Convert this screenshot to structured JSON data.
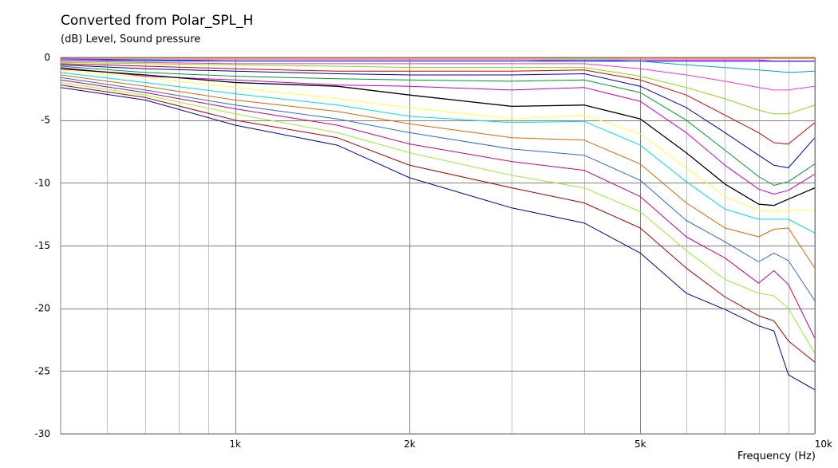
{
  "chart_data": {
    "type": "line",
    "title": "Converted from Polar_SPL_H",
    "ylabel": "(dB)  Level, Sound pressure",
    "xlabel": "Frequency  (Hz)",
    "x_scale": "log",
    "xlim": [
      500,
      10000
    ],
    "ylim": [
      -30,
      0
    ],
    "grid": true,
    "x_tick_values": [
      1000,
      2000,
      5000,
      10000
    ],
    "x_tick_labels": [
      "1k",
      "2k",
      "5k",
      "10k"
    ],
    "y_tick_values": [
      0,
      -5,
      -10,
      -15,
      -20,
      -25,
      -30
    ],
    "y_tick_labels": [
      "0",
      "-5",
      "-10",
      "-15",
      "-20",
      "-25",
      "-30"
    ],
    "x": [
      500,
      700,
      1000,
      1500,
      2000,
      3000,
      4000,
      5000,
      6000,
      7000,
      8000,
      8500,
      9000,
      10000
    ],
    "series": [
      {
        "color": "#ff9900",
        "values": [
          -0.1,
          -0.1,
          -0.1,
          -0.1,
          -0.1,
          -0.1,
          -0.1,
          -0.1,
          -0.1,
          -0.1,
          -0.1,
          -0.1,
          -0.1,
          -0.1
        ]
      },
      {
        "color": "#ff00ff",
        "values": [
          -0.1,
          -0.2,
          -0.2,
          -0.2,
          -0.2,
          -0.2,
          -0.2,
          -0.2,
          -0.2,
          -0.2,
          -0.2,
          -0.3,
          -0.3,
          -0.3
        ]
      },
      {
        "color": "#0000ff",
        "values": [
          -0.2,
          -0.2,
          -0.3,
          -0.3,
          -0.3,
          -0.3,
          -0.3,
          -0.3,
          -0.3,
          -0.3,
          -0.3,
          -0.3,
          -0.3,
          -0.3
        ]
      },
      {
        "color": "#00aaaa",
        "values": [
          -0.2,
          -0.3,
          -0.3,
          -0.3,
          -0.3,
          -0.3,
          -0.2,
          -0.3,
          -0.6,
          -0.8,
          -1.0,
          -1.1,
          -1.2,
          -1.1
        ]
      },
      {
        "color": "#ff33cc",
        "values": [
          -0.3,
          -0.4,
          -0.5,
          -0.5,
          -0.5,
          -0.5,
          -0.5,
          -0.9,
          -1.4,
          -1.9,
          -2.4,
          -2.6,
          -2.6,
          -2.3
        ]
      },
      {
        "color": "#88dd00",
        "values": [
          -0.4,
          -0.5,
          -0.6,
          -0.7,
          -0.8,
          -0.8,
          -0.8,
          -1.5,
          -2.4,
          -3.3,
          -4.2,
          -4.5,
          -4.5,
          -3.8
        ]
      },
      {
        "color": "#cc0000",
        "values": [
          -0.5,
          -0.7,
          -0.9,
          -1.1,
          -1.1,
          -1.1,
          -1.0,
          -1.8,
          -3.0,
          -4.6,
          -6.0,
          -6.8,
          -6.9,
          -5.2
        ]
      },
      {
        "color": "#0000aa",
        "values": [
          -0.6,
          -0.9,
          -1.1,
          -1.3,
          -1.4,
          -1.4,
          -1.3,
          -2.3,
          -4.0,
          -6.0,
          -7.8,
          -8.6,
          -8.8,
          -6.4
        ]
      },
      {
        "color": "#009933",
        "values": [
          -0.7,
          -1.2,
          -1.5,
          -1.7,
          -1.8,
          -1.9,
          -1.8,
          -2.8,
          -5.0,
          -7.4,
          -9.5,
          -10.2,
          -9.9,
          -8.5
        ]
      },
      {
        "color": "#cc00cc",
        "values": [
          -0.8,
          -1.5,
          -1.8,
          -2.2,
          -2.3,
          -2.6,
          -2.4,
          -3.5,
          -6.0,
          -8.6,
          -10.5,
          -10.9,
          -10.6,
          -9.3
        ]
      },
      {
        "color": "#000000",
        "values": [
          -0.9,
          -1.4,
          -2.0,
          -2.3,
          -3.0,
          -3.9,
          -3.8,
          -4.9,
          -7.6,
          -10.1,
          -11.7,
          -11.8,
          -11.3,
          -10.4
        ]
      },
      {
        "color": "#ffff44",
        "values": [
          -1.0,
          -1.6,
          -2.4,
          -3.3,
          -4.0,
          -4.9,
          -4.6,
          -6.1,
          -8.8,
          -11.1,
          -12.2,
          -12.3,
          -12.2,
          -12.2
        ]
      },
      {
        "color": "#00dddd",
        "values": [
          -1.2,
          -2.0,
          -2.9,
          -3.8,
          -4.7,
          -5.2,
          -5.1,
          -7.0,
          -9.9,
          -12.1,
          -12.9,
          -12.9,
          -12.9,
          -14.0
        ]
      },
      {
        "color": "#dd6600",
        "values": [
          -1.4,
          -2.3,
          -3.4,
          -4.3,
          -5.3,
          -6.4,
          -6.6,
          -8.5,
          -11.6,
          -13.6,
          -14.3,
          -13.7,
          -13.6,
          -16.8
        ]
      },
      {
        "color": "#3366cc",
        "values": [
          -1.6,
          -2.6,
          -3.8,
          -4.9,
          -6.0,
          -7.3,
          -7.8,
          -9.8,
          -13.0,
          -14.7,
          -16.3,
          -15.6,
          -16.2,
          -19.4
        ]
      },
      {
        "color": "#cc0077",
        "values": [
          -1.8,
          -2.8,
          -4.1,
          -5.4,
          -6.9,
          -8.3,
          -9.0,
          -11.1,
          -14.3,
          -16.0,
          -18.0,
          -17.0,
          -18.1,
          -22.4
        ]
      },
      {
        "color": "#99ee33",
        "values": [
          -2.0,
          -3.0,
          -4.5,
          -6.0,
          -7.6,
          -9.4,
          -10.4,
          -12.3,
          -15.4,
          -17.7,
          -18.8,
          -19.0,
          -20.0,
          -23.6
        ]
      },
      {
        "color": "#aa0000",
        "values": [
          -2.2,
          -3.2,
          -5.0,
          -6.4,
          -8.6,
          -10.4,
          -11.6,
          -13.6,
          -16.8,
          -19.1,
          -20.6,
          -21.0,
          -22.6,
          -24.3
        ]
      },
      {
        "color": "#000099",
        "values": [
          -2.4,
          -3.4,
          -5.4,
          -7.0,
          -9.6,
          -12.0,
          -13.2,
          -15.6,
          -18.8,
          -20.1,
          -21.4,
          -21.8,
          -25.3,
          -26.5
        ]
      }
    ]
  }
}
